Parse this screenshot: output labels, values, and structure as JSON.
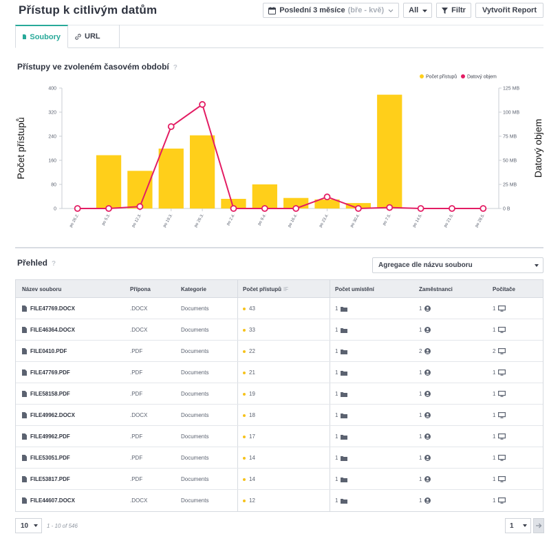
{
  "page_title": "Přístup k citlivým datům",
  "toolbar": {
    "period_label": "Poslední 3 měsíce",
    "period_range": "(bře - kvě)",
    "scope_value": "All",
    "filter_label": "Filtr",
    "report_label": "Vytvořit Report"
  },
  "tabs": [
    {
      "label": "Soubory",
      "active": true
    },
    {
      "label": "URL",
      "active": false
    }
  ],
  "chart_section": {
    "title": "Přístupy ve zvoleném časovém období",
    "help": "?"
  },
  "chart_data": {
    "type": "bar",
    "categories": [
      "po 26.2.",
      "po 5.3.",
      "po 12.3.",
      "po 19.3.",
      "po 26.3.",
      "po 2.4.",
      "po 9.4.",
      "po 16.4.",
      "po 23.4.",
      "po 30.4.",
      "po 7.5.",
      "po 14.5.",
      "po 21.5.",
      "po 28.5."
    ],
    "series": [
      {
        "name": "Počet přístupů",
        "type": "bar",
        "axis": "left",
        "color": "#ffcf1a",
        "values": [
          0,
          177,
          125,
          199,
          243,
          32,
          80,
          35,
          30,
          18,
          378,
          0,
          0,
          0
        ]
      },
      {
        "name": "Datový objem",
        "type": "line",
        "axis": "right",
        "color": "#e31c63",
        "values": [
          0,
          0,
          2,
          85,
          108,
          0,
          0,
          0,
          12,
          0,
          1,
          0,
          0,
          0
        ]
      }
    ],
    "ylabel": "Počet přístupů",
    "y2label": "Datový objem",
    "ylim": [
      0,
      400
    ],
    "y2lim": [
      0,
      125
    ],
    "yticks": [
      "0",
      "80",
      "160",
      "240",
      "320",
      "400"
    ],
    "y2ticks": [
      "0 B",
      "25 MB",
      "50 MB",
      "75 MB",
      "100 MB",
      "125 MB"
    ],
    "legend_position": "top-right",
    "grid": false
  },
  "overview": {
    "title": "Přehled",
    "help": "?",
    "aggregation": "Agregace dle názvu souboru"
  },
  "table": {
    "columns": [
      "Název souboru",
      "Přípona",
      "Kategorie",
      "Počet přístupů",
      "Počet umístění",
      "Zaměstnanci",
      "Počítače"
    ],
    "sort_indicator": "IF",
    "rows": [
      {
        "name": "FILE47769.DOCX",
        "ext": ".DOCX",
        "cat": "Documents",
        "access": "43",
        "locations": "1",
        "employees": "1",
        "computers": "1"
      },
      {
        "name": "FILE46364.DOCX",
        "ext": ".DOCX",
        "cat": "Documents",
        "access": "33",
        "locations": "1",
        "employees": "1",
        "computers": "1"
      },
      {
        "name": "FILE0410.PDF",
        "ext": ".PDF",
        "cat": "Documents",
        "access": "22",
        "locations": "1",
        "employees": "2",
        "computers": "2"
      },
      {
        "name": "FILE47769.PDF",
        "ext": ".PDF",
        "cat": "Documents",
        "access": "21",
        "locations": "1",
        "employees": "1",
        "computers": "1"
      },
      {
        "name": "FILE58158.PDF",
        "ext": ".PDF",
        "cat": "Documents",
        "access": "19",
        "locations": "1",
        "employees": "1",
        "computers": "1"
      },
      {
        "name": "FILE49962.DOCX",
        "ext": ".DOCX",
        "cat": "Documents",
        "access": "18",
        "locations": "1",
        "employees": "1",
        "computers": "1"
      },
      {
        "name": "FILE49962.PDF",
        "ext": ".PDF",
        "cat": "Documents",
        "access": "17",
        "locations": "1",
        "employees": "1",
        "computers": "1"
      },
      {
        "name": "FILE53051.PDF",
        "ext": ".PDF",
        "cat": "Documents",
        "access": "14",
        "locations": "1",
        "employees": "1",
        "computers": "1"
      },
      {
        "name": "FILE53817.PDF",
        "ext": ".PDF",
        "cat": "Documents",
        "access": "14",
        "locations": "1",
        "employees": "1",
        "computers": "1"
      },
      {
        "name": "FILE44607.DOCX",
        "ext": ".DOCX",
        "cat": "Documents",
        "access": "12",
        "locations": "1",
        "employees": "1",
        "computers": "1"
      }
    ]
  },
  "pagination": {
    "page_size": "10",
    "range": "1 - 10 of 546",
    "page": "1"
  },
  "icons": {
    "calendar": "calendar-icon",
    "filter": "filter-icon",
    "file": "file-icon",
    "link": "link-icon",
    "folder": "folder-icon",
    "user": "user-icon",
    "monitor": "monitor-icon",
    "next": "arrow-right-icon"
  }
}
